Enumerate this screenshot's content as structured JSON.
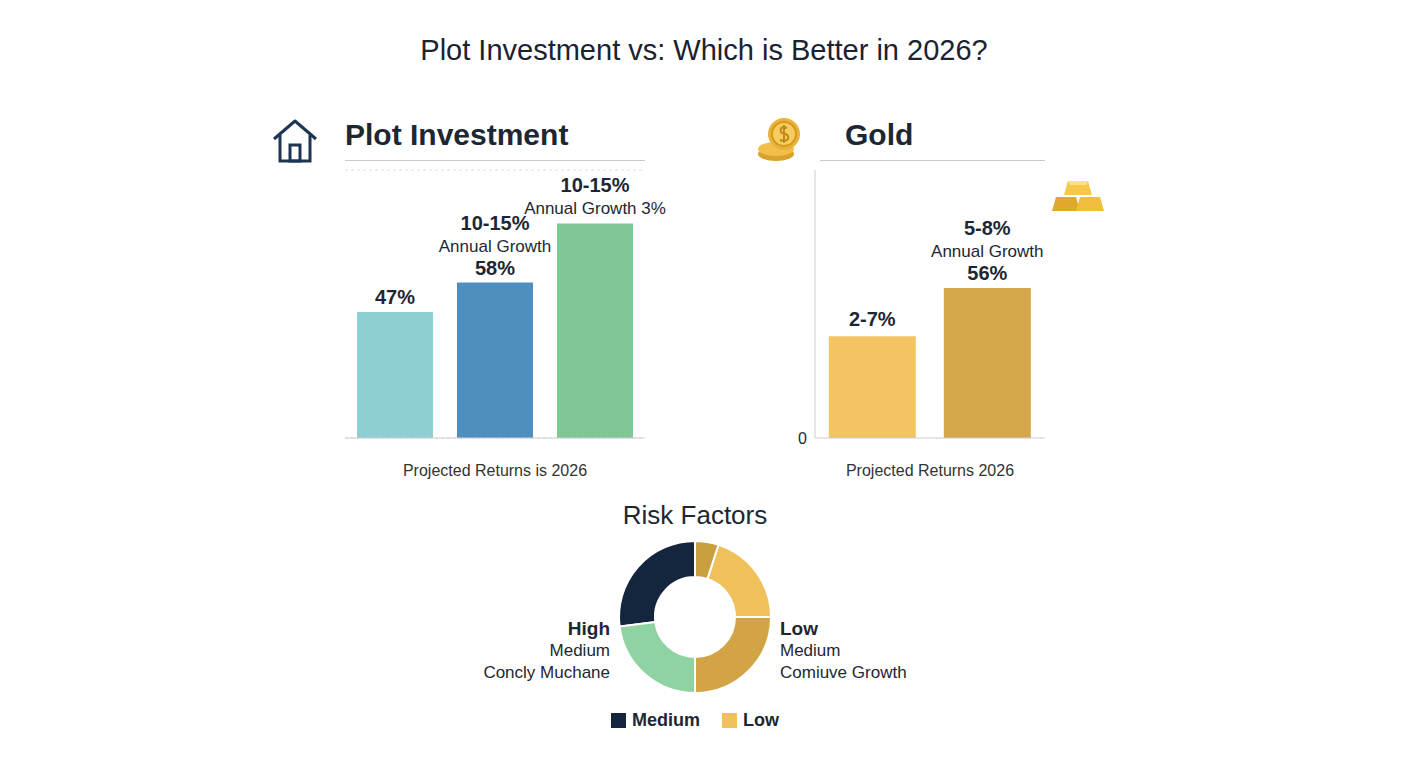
{
  "title": "Plot Investment vs: Which is Better in 2026?",
  "chart_data": [
    {
      "type": "bar",
      "title": "Plot Investment",
      "categories": [
        null,
        null,
        null
      ],
      "values": [
        47,
        58,
        80
      ],
      "value_labels": [
        "47%",
        "58%",
        null
      ],
      "annotations": [
        null,
        [
          "10-15%",
          "Annual Growth"
        ],
        [
          "10-15%",
          "Annual Growth 3%"
        ]
      ],
      "colors": [
        "#8ecfd4",
        "#4f8fc0",
        "#80c796"
      ],
      "x_label": "Projected Returns is 2026",
      "ylim": [
        0,
        100
      ],
      "yticks": [
        0,
        25,
        50,
        75,
        100
      ],
      "grid": true,
      "tick_labels": false,
      "data_labels": true
    },
    {
      "type": "bar",
      "title": "Gold",
      "categories": [
        null,
        null
      ],
      "values": [
        38,
        56
      ],
      "value_labels": [
        null,
        "56%"
      ],
      "annotations": [
        [
          "2-7%"
        ],
        [
          "5-8%",
          "Annual Growth"
        ]
      ],
      "colors": [
        "#f2c462",
        "#d4a84a"
      ],
      "x_label": "Projected Returns 2026",
      "ylim": [
        0,
        100
      ],
      "yticks": [
        0
      ],
      "grid": false,
      "tick_labels": "y",
      "data_labels": true
    },
    {
      "type": "donut",
      "title": "Risk Factors",
      "categories": [
        "Medium",
        null,
        null,
        "Low",
        null
      ],
      "values": [
        27,
        23,
        25,
        20,
        5
      ],
      "colors": [
        "#14263e",
        "#8fd3a3",
        "#d2a445",
        "#efc15a",
        "#c9a040"
      ],
      "left_labels": [
        "High",
        "Medium",
        "Concly Muchane"
      ],
      "right_labels": [
        "Low",
        "Medium",
        "Comiuve Growth"
      ],
      "legend": "bottom"
    }
  ]
}
